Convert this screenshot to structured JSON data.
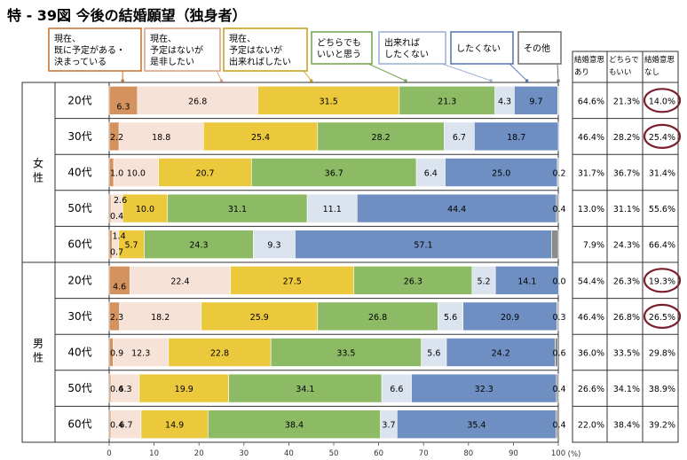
{
  "title": "特 - 39図 今後の結婚願望（独身者）",
  "chart_data": {
    "type": "bar",
    "orientation": "horizontal-stacked-100",
    "xlim": [
      0,
      100
    ],
    "x_ticks": [
      "0",
      "10",
      "20",
      "30",
      "40",
      "50",
      "60",
      "70",
      "80",
      "90",
      "100"
    ],
    "x_unit": "(%)",
    "series": [
      {
        "name": "現在、既に予定がある・決まっている",
        "legend_lines": [
          "現在、",
          "既に予定がある・",
          "決まっている"
        ],
        "color": "#d4935e"
      },
      {
        "name": "現在、予定はないが是非したい",
        "legend_lines": [
          "現在、",
          "予定はないが",
          "是非したい"
        ],
        "color": "#f6e2d6"
      },
      {
        "name": "現在、予定はないが出来ればしたい",
        "legend_lines": [
          "現在、",
          "予定はないが",
          "出来ればしたい"
        ],
        "color": "#ecc93c"
      },
      {
        "name": "どちらでもいいと思う",
        "legend_lines": [
          "どちらでも",
          "いいと思う"
        ],
        "color": "#8dbb65"
      },
      {
        "name": "出来ればしたくない",
        "legend_lines": [
          "出来れば",
          "したくない"
        ],
        "color": "#dbe3ef"
      },
      {
        "name": "したくない",
        "legend_lines": [
          "したくない"
        ],
        "color": "#6f8fc2"
      },
      {
        "name": "その他",
        "legend_lines": [
          "その他"
        ],
        "color": "#8c8c8c"
      }
    ],
    "groups": [
      {
        "name": "女性",
        "name_chars": [
          "女",
          "性"
        ],
        "rows": [
          {
            "label": "20代",
            "values": [
              6.3,
              26.8,
              31.5,
              21.3,
              4.3,
              9.7,
              0.1
            ]
          },
          {
            "label": "30代",
            "values": [
              2.2,
              18.8,
              25.4,
              28.2,
              6.7,
              18.7,
              0.0
            ]
          },
          {
            "label": "40代",
            "values": [
              1.0,
              10.0,
              20.7,
              36.7,
              6.4,
              25.0,
              0.2
            ]
          },
          {
            "label": "50代",
            "values": [
              0.4,
              2.6,
              10.0,
              31.1,
              11.1,
              44.4,
              0.4
            ]
          },
          {
            "label": "60代",
            "values": [
              0.7,
              1.4,
              5.7,
              24.3,
              9.3,
              57.1,
              1.5
            ]
          }
        ]
      },
      {
        "name": "男性",
        "name_chars": [
          "男",
          "性"
        ],
        "rows": [
          {
            "label": "20代",
            "values": [
              4.6,
              22.4,
              27.5,
              26.3,
              5.2,
              14.1,
              0.0
            ]
          },
          {
            "label": "30代",
            "values": [
              2.3,
              18.2,
              25.9,
              26.8,
              5.6,
              20.9,
              0.3
            ]
          },
          {
            "label": "40代",
            "values": [
              0.9,
              12.3,
              22.8,
              33.5,
              5.6,
              24.2,
              0.6
            ]
          },
          {
            "label": "50代",
            "values": [
              0.4,
              6.3,
              19.9,
              34.1,
              6.6,
              32.3,
              0.4
            ]
          },
          {
            "label": "60代",
            "values": [
              0.4,
              6.7,
              14.9,
              38.4,
              3.7,
              35.4,
              0.4
            ]
          }
        ]
      }
    ],
    "segment_labels": [
      [
        "6.3",
        "26.8",
        "31.5",
        "21.3",
        "4.3",
        "9.7",
        ""
      ],
      [
        "2.2",
        "18.8",
        "25.4",
        "28.2",
        "6.7",
        "18.7",
        ""
      ],
      [
        "1.0",
        "10.0",
        "20.7",
        "36.7",
        "6.4",
        "25.0",
        "0.2"
      ],
      [
        "0.4",
        "2.6",
        "10.0",
        "31.1",
        "11.1",
        "44.4",
        "0.4"
      ],
      [
        "0.7",
        "1.4",
        "5.7",
        "24.3",
        "9.3",
        "57.1",
        ""
      ],
      [
        "4.6",
        "22.4",
        "27.5",
        "26.3",
        "5.2",
        "14.1",
        "0.0"
      ],
      [
        "2.3",
        "18.2",
        "25.9",
        "26.8",
        "5.6",
        "20.9",
        "0.3"
      ],
      [
        "0.9",
        "12.3",
        "22.8",
        "33.5",
        "5.6",
        "24.2",
        "0.6"
      ],
      [
        "0.4",
        "6.3",
        "19.9",
        "34.1",
        "6.6",
        "32.3",
        "0.4"
      ],
      [
        "0.4",
        "6.7",
        "14.9",
        "38.4",
        "3.7",
        "35.4",
        "0.4"
      ]
    ],
    "summary_table": {
      "headers": [
        [
          "結婚意思",
          "あり"
        ],
        [
          "どちらで",
          "もいい"
        ],
        [
          "結婚意思",
          "なし"
        ]
      ],
      "rows": [
        [
          "64.6%",
          "21.3%",
          "14.0%"
        ],
        [
          "46.4%",
          "28.2%",
          "25.4%"
        ],
        [
          "31.7%",
          "36.7%",
          "31.4%"
        ],
        [
          "13.0%",
          "31.1%",
          "55.6%"
        ],
        [
          "7.9%",
          "24.3%",
          "66.4%"
        ],
        [
          "54.4%",
          "26.3%",
          "19.3%"
        ],
        [
          "46.4%",
          "26.8%",
          "26.5%"
        ],
        [
          "36.0%",
          "33.5%",
          "29.8%"
        ],
        [
          "26.6%",
          "34.1%",
          "38.9%"
        ],
        [
          "22.0%",
          "38.4%",
          "39.2%"
        ]
      ],
      "circled_rows": [
        0,
        1,
        5,
        6
      ],
      "circle_color": "#7a1f2b"
    }
  }
}
